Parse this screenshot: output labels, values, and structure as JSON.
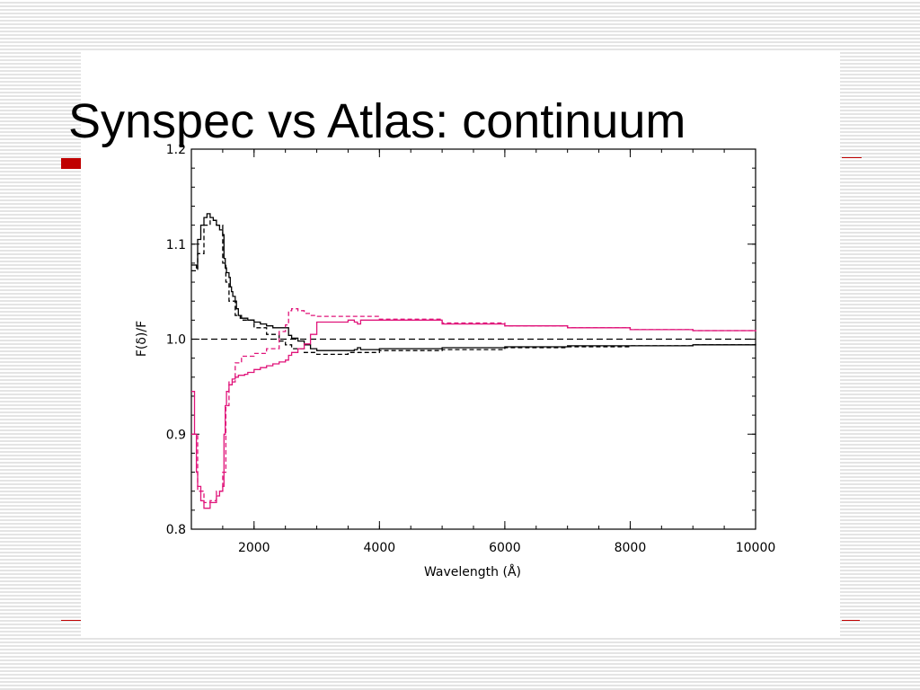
{
  "slide": {
    "title": "Synspec vs Atlas: continuum",
    "accent_color": "#c00000"
  },
  "chart_data": {
    "type": "line",
    "title": "",
    "xlabel": "Wavelength (Å)",
    "ylabel": "F(δ)/F",
    "xlim": [
      1000,
      10000
    ],
    "ylim": [
      0.8,
      1.2
    ],
    "xticks": [
      2000,
      4000,
      6000,
      8000,
      10000
    ],
    "xtick_labels": [
      "2000",
      "4000",
      "6000",
      "8000",
      "10000"
    ],
    "yticks": [
      0.8,
      0.9,
      1.0,
      1.1,
      1.2
    ],
    "ytick_labels": [
      "0.8",
      "0.9",
      "1.0",
      "1.1",
      "1.2"
    ],
    "grid": false,
    "reference_line": {
      "y": 1.0,
      "style": "dashed",
      "color": "#000000"
    },
    "series": [
      {
        "color": "#000000",
        "style": "solid",
        "x": [
          1000,
          1080,
          1100,
          1150,
          1200,
          1250,
          1300,
          1350,
          1400,
          1450,
          1500,
          1520,
          1540,
          1560,
          1600,
          1620,
          1640,
          1660,
          1700,
          1720,
          1750,
          1780,
          1800,
          1900,
          2000,
          2100,
          2200,
          2300,
          2400,
          2500,
          2550,
          2600,
          2700,
          2800,
          2900,
          3000,
          3500,
          3600,
          3650,
          3700,
          4000,
          5000,
          6000,
          7000,
          8000,
          9000,
          10000
        ],
        "y": [
          1.078,
          1.075,
          1.105,
          1.12,
          1.128,
          1.132,
          1.128,
          1.125,
          1.12,
          1.115,
          1.11,
          1.085,
          1.075,
          1.07,
          1.065,
          1.055,
          1.05,
          1.045,
          1.04,
          1.032,
          1.025,
          1.022,
          1.022,
          1.02,
          1.018,
          1.016,
          1.014,
          1.012,
          1.012,
          1.012,
          1.004,
          1.001,
          0.998,
          0.994,
          0.99,
          0.988,
          0.988,
          0.989,
          0.991,
          0.989,
          0.99,
          0.991,
          0.992,
          0.993,
          0.993,
          0.994,
          0.994
        ]
      },
      {
        "color": "#000000",
        "style": "dashed",
        "x": [
          1000,
          1100,
          1200,
          1300,
          1400,
          1500,
          1550,
          1600,
          1700,
          1800,
          2000,
          2200,
          2400,
          2500,
          2600,
          2800,
          3000,
          3500,
          4000,
          5000,
          6000,
          7000,
          8000,
          9000,
          10000
        ],
        "y": [
          1.072,
          1.09,
          1.12,
          1.125,
          1.12,
          1.08,
          1.06,
          1.04,
          1.025,
          1.02,
          1.012,
          1.005,
          0.998,
          0.994,
          0.99,
          0.986,
          0.984,
          0.986,
          0.988,
          0.989,
          0.991,
          0.992,
          0.993,
          0.994,
          0.995
        ]
      },
      {
        "color": "#e0147a",
        "style": "solid",
        "x": [
          1000,
          1050,
          1080,
          1100,
          1150,
          1200,
          1250,
          1300,
          1400,
          1450,
          1500,
          1520,
          1540,
          1560,
          1600,
          1650,
          1700,
          1750,
          1800,
          1850,
          1900,
          2000,
          2100,
          2200,
          2300,
          2400,
          2500,
          2550,
          2600,
          2700,
          2800,
          2900,
          3000,
          3500,
          3600,
          3650,
          3700,
          4000,
          5000,
          6000,
          7000,
          8000,
          9000,
          10000
        ],
        "y": [
          0.945,
          0.9,
          0.86,
          0.845,
          0.83,
          0.822,
          0.822,
          0.828,
          0.835,
          0.84,
          0.845,
          0.9,
          0.93,
          0.945,
          0.952,
          0.958,
          0.96,
          0.962,
          0.962,
          0.963,
          0.965,
          0.968,
          0.97,
          0.972,
          0.974,
          0.976,
          0.978,
          0.983,
          0.986,
          0.99,
          0.995,
          1.005,
          1.018,
          1.02,
          1.018,
          1.016,
          1.02,
          1.02,
          1.016,
          1.014,
          1.012,
          1.01,
          1.009,
          1.008
        ]
      },
      {
        "color": "#e0147a",
        "style": "dashed",
        "x": [
          1000,
          1100,
          1200,
          1300,
          1400,
          1500,
          1550,
          1600,
          1700,
          1800,
          2000,
          2200,
          2400,
          2500,
          2550,
          2600,
          2700,
          2800,
          2900,
          3000,
          4000,
          5000,
          6000,
          7000,
          8000,
          9000,
          10000
        ],
        "y": [
          0.9,
          0.84,
          0.828,
          0.83,
          0.84,
          0.86,
          0.93,
          0.955,
          0.975,
          0.982,
          0.985,
          0.99,
          1.008,
          1.015,
          1.03,
          1.032,
          1.03,
          1.027,
          1.025,
          1.024,
          1.021,
          1.017,
          1.014,
          1.012,
          1.01,
          1.009,
          1.008
        ]
      }
    ]
  }
}
